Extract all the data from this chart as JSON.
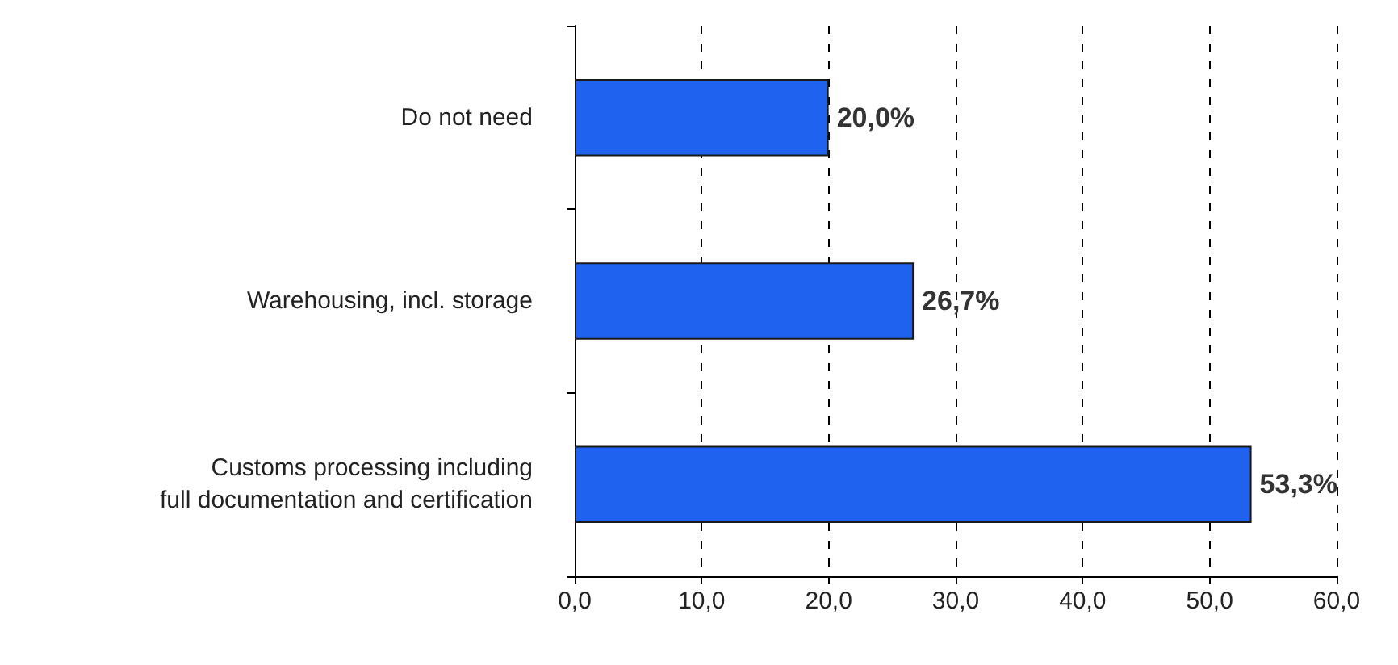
{
  "chart_data": {
    "type": "bar",
    "orientation": "horizontal",
    "categories": [
      "Do not need",
      "Warehousing, incl. storage",
      "Customs processing including\nfull documentation and certification"
    ],
    "values": [
      20.0,
      26.7,
      53.3
    ],
    "value_labels": [
      "20,0%",
      "26,7%",
      "53,3%"
    ],
    "color": "#1f62f0",
    "xlim": [
      0,
      60
    ],
    "xticks": [
      {
        "value": 0,
        "label": "0,0"
      },
      {
        "value": 10,
        "label": "10,0"
      },
      {
        "value": 20,
        "label": "20,0"
      },
      {
        "value": 30,
        "label": "30,0"
      },
      {
        "value": 40,
        "label": "40,0"
      },
      {
        "value": 50,
        "label": "50,0"
      },
      {
        "value": 60,
        "label": "60,0"
      }
    ],
    "grid": "x"
  }
}
